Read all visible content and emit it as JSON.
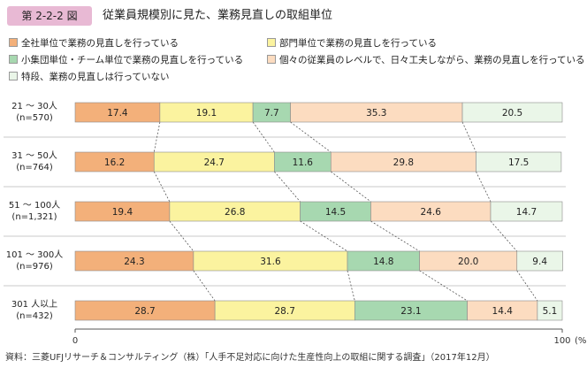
{
  "figure": {
    "number": "第 2-2-2 図",
    "title": "従業員規模別に見た、業務見直しの取組単位",
    "source": "資料：三菱UFJリサーチ＆コンサルティング（株）「人手不足対応に向けた生産性向上の取組に関する調査」（2017年12月）"
  },
  "chart_data": {
    "type": "bar",
    "orientation": "horizontal",
    "stacked": true,
    "percent": true,
    "categories": [
      [
        "21 〜 30人",
        "(n=570)"
      ],
      [
        "31 〜 50人",
        "(n=764)"
      ],
      [
        "51 〜 100人",
        "(n=1,321)"
      ],
      [
        "101 〜 300人",
        "(n=976)"
      ],
      [
        "301 人以上",
        "(n=432)"
      ]
    ],
    "series": [
      {
        "name": "全社単位で業務の見直しを行っている",
        "color": "#f3b07a",
        "values": [
          17.4,
          16.2,
          19.4,
          24.3,
          28.7
        ]
      },
      {
        "name": "部門単位で業務の見直しを行っている",
        "color": "#fbf39f",
        "values": [
          19.1,
          24.7,
          26.8,
          31.6,
          28.7
        ]
      },
      {
        "name": "小集団単位・チーム単位で業務の見直しを行っている",
        "color": "#a7d8b0",
        "values": [
          7.7,
          11.6,
          14.5,
          14.8,
          23.1
        ]
      },
      {
        "name": "個々の従業員のレベルで、日々工夫しながら、業務の見直しを行っている",
        "color": "#fcdcc0",
        "values": [
          35.3,
          29.8,
          24.6,
          20.0,
          14.4
        ]
      },
      {
        "name": "特段、業務の見直しは行っていない",
        "color": "#eaf6e8",
        "values": [
          20.5,
          17.5,
          14.7,
          9.4,
          5.1
        ]
      }
    ],
    "xaxis": {
      "min_label": "0",
      "max_label": "100",
      "unit": "(%)",
      "range": [
        0,
        100
      ]
    },
    "connector_lines": "dashed",
    "grid": false,
    "legend_position": "top"
  }
}
